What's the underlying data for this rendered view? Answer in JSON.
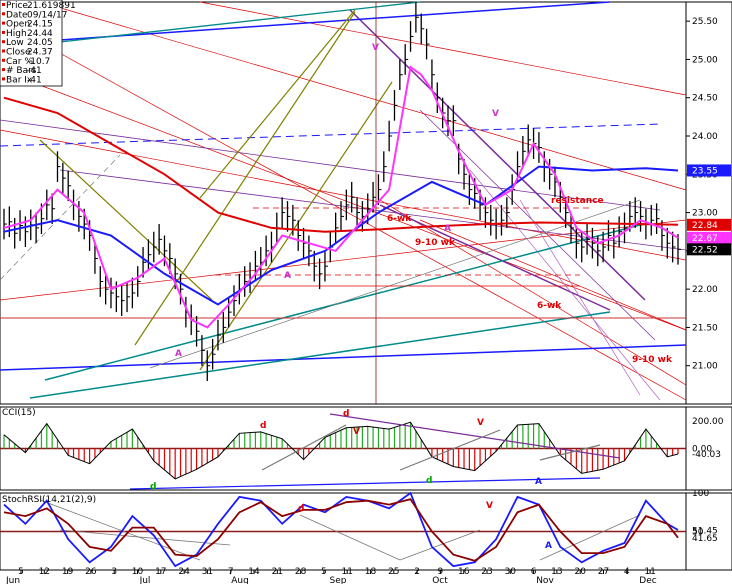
{
  "chart_data": [
    {
      "type": "line",
      "panel": "price",
      "title": "",
      "xlabel": "",
      "ylabel": "",
      "ylim": [
        20.5,
        25.75
      ],
      "x_ticks": [
        "5",
        "12",
        "19",
        "26",
        "3",
        "10",
        "17",
        "24",
        "31",
        "7",
        "14",
        "21",
        "28",
        "5",
        "11",
        "18",
        "25",
        "2",
        "9",
        "16",
        "23",
        "30",
        "6",
        "13",
        "20",
        "27",
        "4",
        "11"
      ],
      "month_labels": [
        "Jun",
        "Jul",
        "Aug",
        "Sep",
        "Oct",
        "Nov",
        "Dec"
      ],
      "y_ticks": [
        "21.00",
        "21.50",
        "22.00",
        "22.50",
        "23.00",
        "23.50",
        "24.00",
        "24.50",
        "25.00",
        "25.50"
      ],
      "info_box": [
        {
          "k": "Price",
          "v": "21.619891"
        },
        {
          "k": "Date",
          "v": "09/14/17"
        },
        {
          "k": "Open",
          "v": "24.15"
        },
        {
          "k": "High",
          "v": "24.44"
        },
        {
          "k": "Low",
          "v": "24.05"
        },
        {
          "k": "Close",
          "v": "24.37"
        },
        {
          "k": "Car %",
          "v": "-10.7"
        },
        {
          "k": "# Bars",
          "v": "-41"
        },
        {
          "k": "Bar Ix",
          "v": "-41"
        }
      ],
      "price_labels": [
        {
          "text": "23.55",
          "value": 23.55,
          "color": "#1a1aff"
        },
        {
          "text": "22.84",
          "value": 22.84,
          "color": "#e00000"
        },
        {
          "text": "22.67",
          "value": 22.67,
          "color": "#ff33ff"
        },
        {
          "text": "22.52",
          "value": 22.52,
          "color": "#000000"
        }
      ],
      "series": [
        {
          "kind": "ohlc",
          "color": "#000000",
          "x": [
            0,
            1,
            2,
            3,
            4,
            5,
            6,
            7,
            8,
            9,
            10,
            11,
            12,
            13,
            14,
            15,
            16,
            17,
            18,
            19,
            20,
            21,
            22,
            23,
            24,
            25,
            26,
            27,
            28,
            29,
            30,
            31,
            32,
            33,
            34,
            35,
            36,
            37,
            38,
            39,
            40,
            41,
            42,
            43,
            44,
            45,
            46,
            47,
            48,
            49,
            50,
            51,
            52,
            53,
            54,
            55,
            56,
            57,
            58,
            59,
            60,
            61,
            62,
            63,
            64,
            65,
            66,
            67,
            68,
            69,
            70,
            71,
            72,
            73,
            74,
            75,
            76,
            77,
            78,
            79,
            80,
            81,
            82,
            83,
            84,
            85,
            86,
            87,
            88,
            89,
            90,
            91,
            92,
            93,
            94,
            95,
            96,
            97,
            98,
            99,
            100,
            101,
            102,
            103,
            104,
            105,
            106,
            107,
            108,
            109,
            110,
            111,
            112,
            113,
            114,
            115,
            116,
            117,
            118,
            119,
            120,
            121,
            122,
            123,
            124,
            125,
            126
          ],
          "close": [
            22.85,
            22.88,
            22.73,
            22.83,
            22.75,
            22.84,
            22.8,
            22.92,
            23.1,
            23.05,
            23.6,
            23.45,
            23.35,
            23.1,
            22.95,
            22.85,
            22.7,
            22.4,
            22.1,
            22.0,
            21.95,
            21.9,
            21.85,
            21.9,
            21.95,
            22.1,
            22.35,
            22.45,
            22.55,
            22.65,
            22.5,
            22.4,
            22.2,
            22.0,
            21.7,
            21.6,
            21.45,
            21.2,
            21.0,
            21.15,
            21.4,
            21.5,
            21.7,
            21.85,
            22.0,
            22.1,
            22.15,
            22.3,
            22.35,
            22.5,
            22.55,
            22.8,
            23.0,
            22.95,
            22.9,
            22.7,
            22.6,
            22.5,
            22.3,
            22.2,
            22.3,
            22.55,
            22.8,
            22.95,
            23.1,
            23.2,
            23.0,
            22.95,
            23.05,
            23.2,
            23.3,
            23.6,
            24.0,
            24.4,
            24.8,
            25.0,
            25.3,
            25.55,
            25.4,
            25.2,
            24.8,
            24.5,
            24.3,
            24.2,
            24.2,
            23.7,
            23.5,
            23.3,
            23.25,
            23.1,
            23.0,
            22.9,
            22.85,
            22.9,
            23.0,
            23.3,
            23.6,
            23.8,
            23.95,
            23.9,
            23.85,
            23.6,
            23.5,
            23.4,
            23.2,
            23.0,
            22.8,
            22.6,
            22.55,
            22.65,
            22.6,
            22.5,
            22.55,
            22.7,
            22.6,
            22.75,
            22.8,
            22.95,
            23.0,
            22.95,
            22.85,
            22.9,
            22.92,
            22.7,
            22.6,
            22.55,
            22.52
          ],
          "high": [
            23.05,
            23.08,
            22.93,
            23.03,
            22.95,
            23.04,
            23.0,
            23.12,
            23.3,
            23.25,
            23.8,
            23.65,
            23.55,
            23.3,
            23.15,
            23.05,
            22.9,
            22.6,
            22.3,
            22.2,
            22.15,
            22.1,
            22.05,
            22.1,
            22.15,
            22.3,
            22.55,
            22.65,
            22.75,
            22.85,
            22.7,
            22.6,
            22.4,
            22.2,
            21.9,
            21.8,
            21.65,
            21.4,
            21.2,
            21.35,
            21.6,
            21.7,
            21.9,
            22.05,
            22.2,
            22.3,
            22.35,
            22.5,
            22.55,
            22.7,
            22.75,
            23.0,
            23.2,
            23.15,
            23.1,
            22.9,
            22.8,
            22.7,
            22.5,
            22.4,
            22.5,
            22.75,
            23.0,
            23.15,
            23.3,
            23.4,
            23.2,
            23.15,
            23.25,
            23.4,
            23.5,
            23.8,
            24.2,
            24.6,
            25.0,
            25.2,
            25.5,
            25.75,
            25.6,
            25.4,
            25.0,
            24.7,
            24.5,
            24.4,
            24.4,
            23.9,
            23.7,
            23.5,
            23.45,
            23.3,
            23.2,
            23.1,
            23.05,
            23.1,
            23.2,
            23.5,
            23.8,
            24.0,
            24.15,
            24.1,
            24.05,
            23.8,
            23.7,
            23.6,
            23.4,
            23.2,
            23.0,
            22.8,
            22.75,
            22.85,
            22.8,
            22.7,
            22.75,
            22.9,
            22.8,
            22.95,
            23.0,
            23.15,
            23.2,
            23.15,
            23.05,
            23.1,
            23.12,
            22.9,
            22.8,
            22.75,
            22.72
          ],
          "low": [
            22.65,
            22.68,
            22.53,
            22.63,
            22.55,
            22.64,
            22.6,
            22.72,
            22.9,
            22.85,
            23.4,
            23.25,
            23.15,
            22.9,
            22.75,
            22.65,
            22.5,
            22.2,
            21.9,
            21.8,
            21.75,
            21.7,
            21.65,
            21.7,
            21.75,
            21.9,
            22.15,
            22.25,
            22.35,
            22.45,
            22.3,
            22.2,
            22.0,
            21.8,
            21.5,
            21.4,
            21.25,
            21.0,
            20.8,
            20.95,
            21.2,
            21.3,
            21.5,
            21.65,
            21.8,
            21.9,
            21.95,
            22.1,
            22.15,
            22.3,
            22.35,
            22.6,
            22.8,
            22.75,
            22.7,
            22.5,
            22.4,
            22.3,
            22.1,
            22.0,
            22.1,
            22.35,
            22.6,
            22.75,
            22.9,
            23.0,
            22.8,
            22.75,
            22.85,
            23.0,
            23.1,
            23.4,
            23.8,
            24.2,
            24.6,
            24.8,
            25.1,
            25.35,
            25.2,
            25.0,
            24.6,
            24.3,
            24.1,
            24.0,
            24.0,
            23.5,
            23.3,
            23.1,
            23.05,
            22.9,
            22.8,
            22.7,
            22.65,
            22.7,
            22.8,
            23.1,
            23.4,
            23.6,
            23.75,
            23.7,
            23.65,
            23.4,
            23.3,
            23.2,
            23.0,
            22.8,
            22.6,
            22.4,
            22.35,
            22.45,
            22.4,
            22.3,
            22.35,
            22.5,
            22.4,
            22.55,
            22.6,
            22.75,
            22.8,
            22.75,
            22.65,
            22.7,
            22.72,
            22.5,
            22.4,
            22.35,
            22.32
          ]
        },
        {
          "kind": "line",
          "color": "#e00000",
          "x": [
            0,
            10,
            20,
            30,
            40,
            50,
            60,
            70,
            80,
            90,
            100,
            110,
            120,
            126
          ],
          "y": [
            24.5,
            24.3,
            23.9,
            23.5,
            23.0,
            22.8,
            22.75,
            22.78,
            22.82,
            22.85,
            22.87,
            22.86,
            22.85,
            22.84
          ]
        },
        {
          "kind": "line",
          "color": "#1a1aff",
          "x": [
            0,
            10,
            20,
            30,
            40,
            50,
            60,
            70,
            80,
            90,
            100,
            110,
            120,
            126
          ],
          "y": [
            22.75,
            22.9,
            22.7,
            22.2,
            21.8,
            22.25,
            22.5,
            23.0,
            23.4,
            23.1,
            23.6,
            23.55,
            23.58,
            23.55
          ]
        },
        {
          "kind": "line",
          "color": "#ff33ff",
          "x": [
            0,
            5,
            10,
            15,
            20,
            25,
            30,
            35,
            38,
            42,
            47,
            52,
            57,
            62,
            67,
            72,
            76,
            78,
            80,
            85,
            90,
            95,
            99,
            103,
            107,
            111,
            115,
            119,
            123,
            126
          ],
          "y": [
            22.8,
            22.9,
            23.3,
            23.0,
            22.0,
            22.15,
            22.4,
            21.6,
            21.5,
            21.8,
            22.2,
            22.7,
            22.6,
            22.5,
            22.9,
            23.3,
            24.9,
            24.8,
            24.6,
            23.8,
            23.1,
            23.3,
            23.9,
            23.5,
            22.8,
            22.6,
            22.7,
            22.9,
            22.8,
            22.67
          ]
        }
      ],
      "annotations": [
        {
          "text": "resistance",
          "color": "#e00000",
          "value": 23.1
        },
        {
          "text": "6-wk",
          "color": "#e00000",
          "value": 22.9
        },
        {
          "text": "9-10 wk",
          "color": "#e00000",
          "value": 22.55
        },
        {
          "text": "6-wk",
          "color": "#e00000",
          "value": 21.9
        },
        {
          "text": "9-10 wk",
          "color": "#e00000",
          "value": 21.05
        },
        {
          "text": "V",
          "color": "#cc33cc",
          "value": 25.2
        },
        {
          "text": "V",
          "color": "#cc33cc",
          "value": 24.2
        },
        {
          "text": "A",
          "color": "#cc33cc",
          "value": 21.1
        },
        {
          "text": "A",
          "color": "#cc33cc",
          "value": 22.15
        },
        {
          "text": "A",
          "color": "#cc33cc",
          "value": 22.7
        }
      ]
    },
    {
      "type": "bar",
      "panel": "CCI",
      "title": "CCI(15)",
      "ylim": [
        -300,
        300
      ],
      "y_ticks": [
        "200.00",
        "0.00"
      ],
      "price_labels": [
        {
          "text": "-40.03",
          "value": -40.03,
          "color": "#000000"
        }
      ],
      "x": [
        0,
        4,
        8,
        12,
        16,
        20,
        24,
        28,
        32,
        36,
        40,
        44,
        48,
        52,
        56,
        60,
        64,
        68,
        72,
        76,
        80,
        84,
        88,
        92,
        96,
        100,
        104,
        108,
        112,
        116,
        120,
        124,
        126
      ],
      "values": [
        100,
        -30,
        180,
        -50,
        -110,
        50,
        140,
        -90,
        -220,
        -150,
        -60,
        110,
        120,
        70,
        -80,
        80,
        150,
        160,
        140,
        190,
        -60,
        -130,
        -160,
        -20,
        170,
        180,
        -50,
        -180,
        -150,
        -90,
        140,
        -60,
        -40
      ],
      "annotations": [
        {
          "text": "d",
          "color": "#00aa00",
          "value": -240
        },
        {
          "text": "d",
          "color": "#e00000",
          "value": 200
        },
        {
          "text": "d",
          "color": "#e00000",
          "value": 270
        },
        {
          "text": "V",
          "color": "#e00000",
          "value": 150
        },
        {
          "text": "d",
          "color": "#00aa00",
          "value": -200
        },
        {
          "text": "V",
          "color": "#e00000",
          "value": 230
        },
        {
          "text": "A",
          "color": "#1a1aff",
          "value": -210
        }
      ]
    },
    {
      "type": "line",
      "panel": "StochRSI",
      "title": "StochRSI(14,21(2),9)",
      "ylim": [
        0,
        100
      ],
      "y_ticks": [
        "100",
        "50"
      ],
      "price_labels": [
        {
          "text": "51.45",
          "value": 51.45,
          "color": "#000000"
        },
        {
          "text": "41.65",
          "value": 41.65,
          "color": "#000000"
        }
      ],
      "series": [
        {
          "kind": "line",
          "color": "#1a1aff",
          "x": [
            0,
            4,
            8,
            12,
            16,
            20,
            24,
            28,
            32,
            36,
            40,
            44,
            48,
            52,
            56,
            60,
            64,
            68,
            72,
            76,
            80,
            84,
            88,
            92,
            96,
            100,
            104,
            108,
            112,
            116,
            120,
            124,
            126
          ],
          "y": [
            85,
            60,
            90,
            40,
            10,
            30,
            70,
            45,
            5,
            20,
            60,
            95,
            90,
            60,
            85,
            75,
            95,
            90,
            80,
            100,
            30,
            5,
            10,
            40,
            95,
            85,
            30,
            10,
            25,
            35,
            90,
            60,
            52
          ]
        },
        {
          "kind": "line",
          "color": "#8b0000",
          "x": [
            0,
            4,
            8,
            12,
            16,
            20,
            24,
            28,
            32,
            36,
            40,
            44,
            48,
            52,
            56,
            60,
            64,
            68,
            72,
            76,
            80,
            84,
            88,
            92,
            96,
            100,
            104,
            108,
            112,
            116,
            120,
            124,
            126
          ],
          "y": [
            75,
            70,
            80,
            60,
            30,
            25,
            55,
            55,
            20,
            18,
            40,
            75,
            88,
            70,
            78,
            78,
            88,
            90,
            85,
            92,
            50,
            20,
            12,
            30,
            75,
            85,
            50,
            22,
            22,
            30,
            70,
            60,
            42
          ]
        }
      ],
      "annotations": [
        {
          "text": "d",
          "color": "#e00000",
          "value": 78
        },
        {
          "text": "V",
          "color": "#e00000",
          "value": 88
        },
        {
          "text": "A",
          "color": "#1a1aff",
          "value": 22
        }
      ]
    }
  ]
}
